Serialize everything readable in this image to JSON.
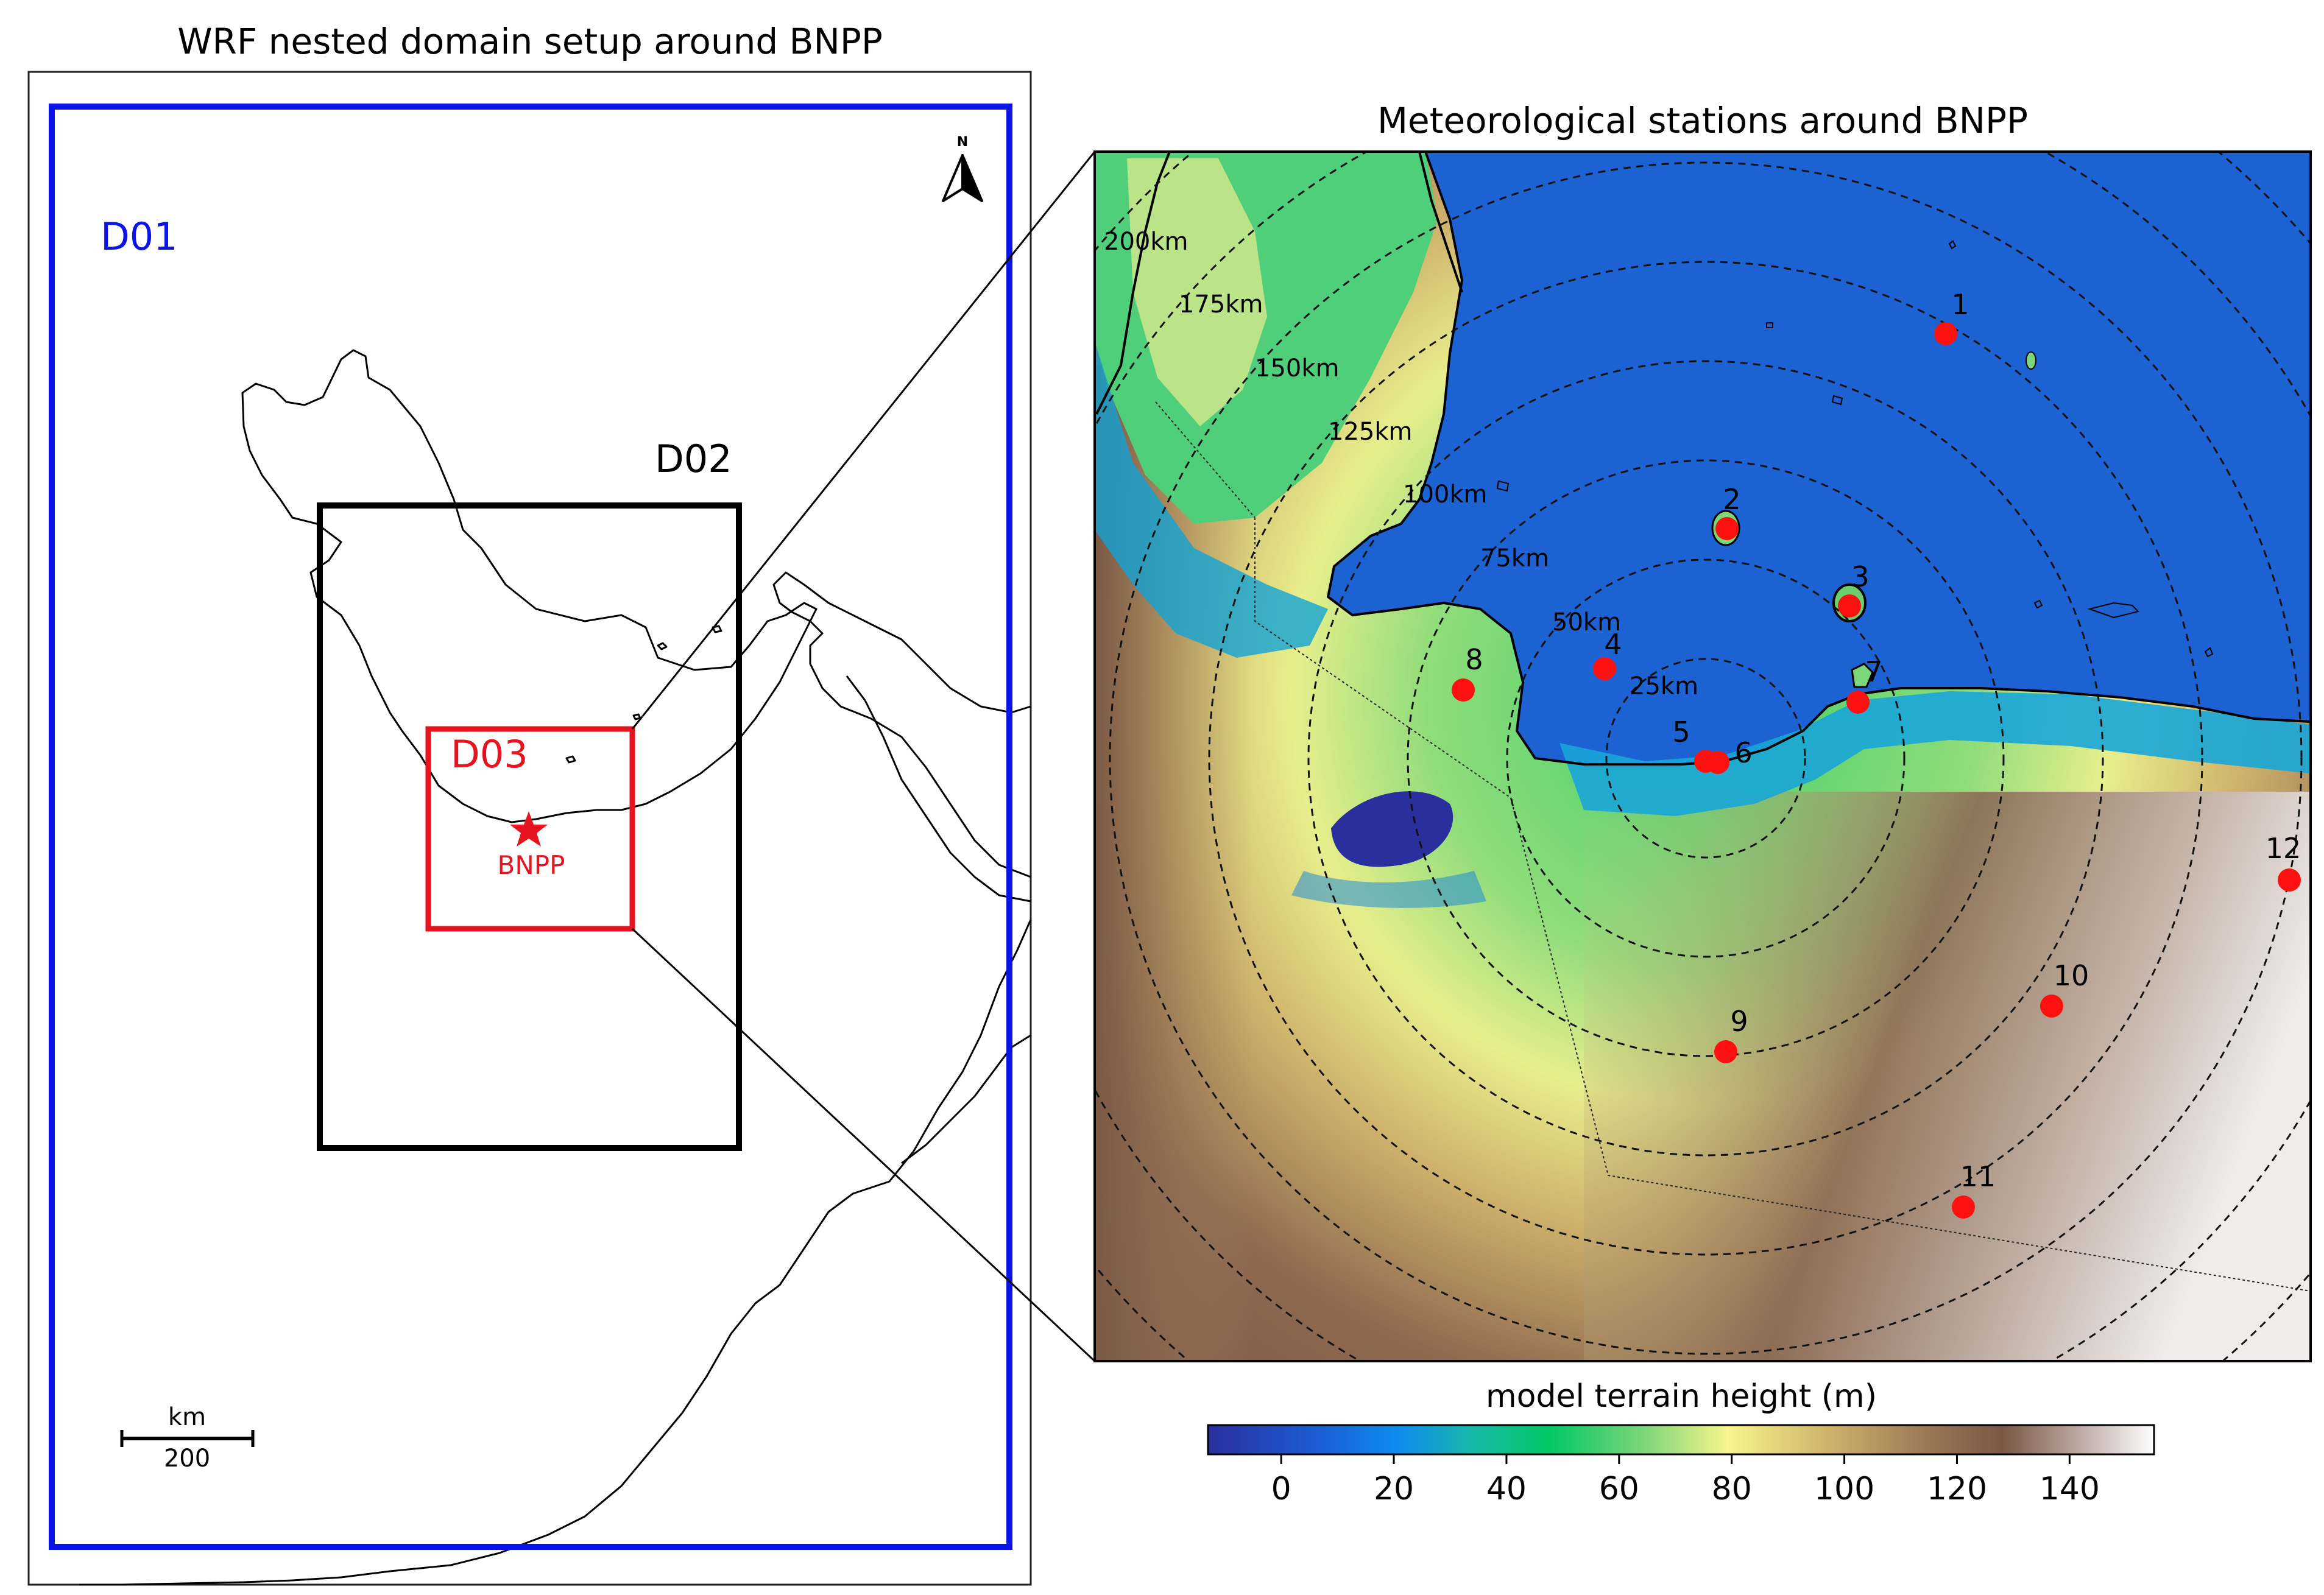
{
  "left_panel": {
    "title": "WRF nested domain setup around BNPP",
    "domains": [
      {
        "label": "D01",
        "color": "#0a14e6"
      },
      {
        "label": "D02",
        "color": "#000000"
      },
      {
        "label": "D03",
        "color": "#e6141e"
      }
    ],
    "site": {
      "label": "BNPP",
      "color": "#e6141e"
    },
    "north_arrow": "N",
    "scale_bar": {
      "unit": "km",
      "value": "200"
    }
  },
  "right_panel": {
    "title": "Meteorological stations around BNPP",
    "ring_labels": [
      "25km",
      "50km",
      "75km",
      "100km",
      "125km",
      "150km",
      "175km",
      "200km"
    ],
    "stations": [
      {
        "id": "1"
      },
      {
        "id": "2"
      },
      {
        "id": "3"
      },
      {
        "id": "4"
      },
      {
        "id": "5"
      },
      {
        "id": "6"
      },
      {
        "id": "7"
      },
      {
        "id": "8"
      },
      {
        "id": "9"
      },
      {
        "id": "10"
      },
      {
        "id": "11"
      },
      {
        "id": "12"
      }
    ],
    "station_color": "#ff1010"
  },
  "colorbar": {
    "label": "model terrain height (m)",
    "ticks": [
      "0",
      "20",
      "40",
      "60",
      "80",
      "100",
      "120",
      "140"
    ],
    "range": [
      -13,
      155
    ],
    "colormap": [
      "#2a2f9e",
      "#0d8cf0",
      "#00c864",
      "#f8f58c",
      "#7a5844",
      "#ffffff"
    ]
  }
}
